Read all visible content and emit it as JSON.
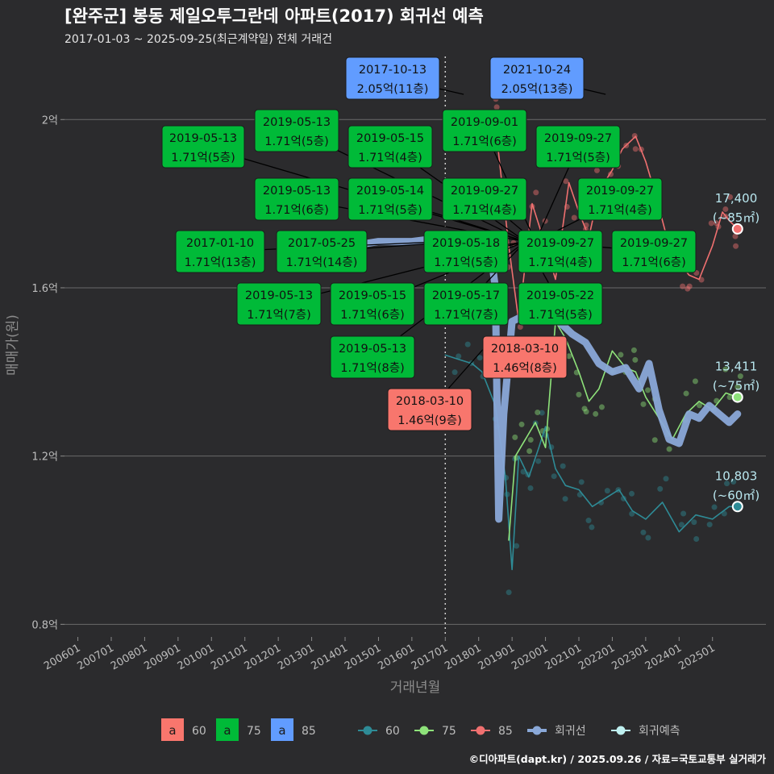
{
  "header": {
    "title": "[완주군] 봉동 제일오투그란데 아파트(2017) 회귀선 예측",
    "subtitle": "2017-01-03 ~ 2025-09-25(최근계약일) 전체 거래건"
  },
  "caption": "©디아파트(dapt.kr) / 2025.09.26 / 자료=국토교통부 실거래가",
  "colors": {
    "background": "#2b2b2d",
    "area60": "#2e8b96",
    "area75": "#8ee27a",
    "area85": "#f07070",
    "regression": "#8aa8d8",
    "predict": "#bff0f0",
    "label60": "#f8766d",
    "label75": "#00ba38",
    "label85": "#619cff"
  },
  "chart_data": {
    "type": "line",
    "xlabel": "거래년월",
    "ylabel": "매매가(원)",
    "x_ticks": [
      "200601",
      "200701",
      "200801",
      "200901",
      "201001",
      "201101",
      "201201",
      "201301",
      "201401",
      "201501",
      "201601",
      "201701",
      "201801",
      "201901",
      "202001",
      "202101",
      "202201",
      "202301",
      "202401",
      "202501"
    ],
    "y_ticks": [
      {
        "value": 0.8,
        "label": "0.8억"
      },
      {
        "value": 1.2,
        "label": "1.2억"
      },
      {
        "value": 1.6,
        "label": "1.6억"
      },
      {
        "value": 2.0,
        "label": "2억"
      }
    ],
    "xlim": [
      2005.6,
      2026.6
    ],
    "ylim": [
      0.77,
      2.15
    ],
    "ref_line_x": 2017.0,
    "legend": {
      "label_keys": [
        {
          "glyph": "a",
          "name": "60",
          "color": "#f8766d"
        },
        {
          "glyph": "a",
          "name": "75",
          "color": "#00ba38"
        },
        {
          "glyph": "a",
          "name": "85",
          "color": "#619cff"
        }
      ],
      "line_keys": [
        {
          "name": "60",
          "color": "#2e8b96"
        },
        {
          "name": "75",
          "color": "#8ee27a"
        },
        {
          "name": "85",
          "color": "#f07070"
        },
        {
          "name": "회귀선",
          "color": "#8aa8d8"
        },
        {
          "name": "회귀예측",
          "color": "#bff0f0"
        }
      ]
    },
    "series": [
      {
        "name": "60",
        "color": "#2e8b96",
        "x": [
          2017.0,
          2017.4,
          2017.8,
          2018.1,
          2018.5,
          2018.8,
          2019.0,
          2019.2,
          2019.5,
          2019.8,
          2020.0,
          2020.3,
          2020.6,
          2021.0,
          2021.4,
          2021.8,
          2022.2,
          2022.6,
          2023.0,
          2023.5,
          2024.0,
          2024.5,
          2025.0,
          2025.5,
          2025.75
        ],
        "y": [
          1.44,
          1.43,
          1.42,
          1.4,
          1.32,
          1.15,
          0.93,
          1.2,
          1.15,
          1.22,
          1.27,
          1.17,
          1.13,
          1.12,
          1.08,
          1.1,
          1.12,
          1.07,
          1.05,
          1.09,
          1.02,
          1.06,
          1.05,
          1.08,
          1.08
        ]
      },
      {
        "name": "75",
        "color": "#8ee27a",
        "x": [
          2018.9,
          2019.1,
          2019.4,
          2019.7,
          2020.0,
          2020.3,
          2020.6,
          2021.0,
          2021.3,
          2021.6,
          2022.0,
          2022.4,
          2022.7,
          2023.0,
          2023.4,
          2023.8,
          2024.2,
          2024.6,
          2025.0,
          2025.4,
          2025.75
        ],
        "y": [
          1.0,
          1.2,
          1.24,
          1.28,
          1.22,
          1.52,
          1.48,
          1.4,
          1.33,
          1.36,
          1.45,
          1.41,
          1.4,
          1.34,
          1.29,
          1.24,
          1.3,
          1.33,
          1.31,
          1.35,
          1.34
        ]
      },
      {
        "name": "85",
        "color": "#f07070",
        "x": [
          2018.1,
          2018.5,
          2018.9,
          2019.2,
          2019.6,
          2020.0,
          2020.3,
          2020.7,
          2021.0,
          2021.3,
          2021.6,
          2022.0,
          2022.3,
          2022.7,
          2023.0,
          2023.3,
          2023.7,
          2024.0,
          2024.3,
          2024.6,
          2025.0,
          2025.3,
          2025.5,
          2025.75
        ],
        "y": [
          2.02,
          1.99,
          1.7,
          1.52,
          1.8,
          1.7,
          1.62,
          1.85,
          1.78,
          1.72,
          1.83,
          1.88,
          1.93,
          1.96,
          1.9,
          1.82,
          1.7,
          1.66,
          1.63,
          1.62,
          1.7,
          1.78,
          1.76,
          1.74
        ]
      },
      {
        "name": "회귀선",
        "color": "#8aa8d8",
        "x": [
          2014.2,
          2015.0,
          2016.0,
          2017.0,
          2017.8,
          2018.3,
          2018.5,
          2018.6,
          2018.75,
          2019.0,
          2019.5,
          2020.0,
          2020.4,
          2020.8,
          2021.2,
          2021.6,
          2022.0,
          2022.4,
          2022.8,
          2023.1,
          2023.4,
          2023.7,
          2024.0,
          2024.3,
          2024.6,
          2024.9,
          2025.2,
          2025.5,
          2025.75
        ],
        "y": [
          1.7,
          1.71,
          1.71,
          1.72,
          1.72,
          1.72,
          1.6,
          1.05,
          1.3,
          1.52,
          1.54,
          1.56,
          1.52,
          1.49,
          1.47,
          1.42,
          1.4,
          1.41,
          1.36,
          1.42,
          1.31,
          1.24,
          1.23,
          1.3,
          1.29,
          1.32,
          1.3,
          1.28,
          1.3
        ]
      }
    ],
    "end_labels": [
      {
        "value": "17,400",
        "area": "(~85㎡)",
        "y": 1.74,
        "color": "#f07070"
      },
      {
        "value": "13,411",
        "area": "(~75㎡)",
        "y": 1.34,
        "color": "#8ee27a"
      },
      {
        "value": "10,803",
        "area": "(~60㎡)",
        "y": 1.08,
        "color": "#2e8b96"
      }
    ],
    "annotations": [
      {
        "date": "2017-10-13",
        "price": "2.05억(11층)",
        "color": "#619cff",
        "tx": 2017.55,
        "ty": 2.06
      },
      {
        "date": "2021-10-24",
        "price": "2.05억(13층)",
        "color": "#619cff",
        "tx": 2021.8,
        "ty": 2.06
      },
      {
        "date": "2019-05-13",
        "price": "1.71억(5층)",
        "color": "#00ba38",
        "tx": 2019.4,
        "ty": 1.71
      },
      {
        "date": "2019-05-13",
        "price": "1.71억(5층)",
        "color": "#00ba38",
        "tx": 2019.4,
        "ty": 1.71
      },
      {
        "date": "2019-05-15",
        "price": "1.71억(4층)",
        "color": "#00ba38",
        "tx": 2019.4,
        "ty": 1.71
      },
      {
        "date": "2019-09-01",
        "price": "1.71억(6층)",
        "color": "#00ba38",
        "tx": 2019.7,
        "ty": 1.71
      },
      {
        "date": "2019-09-27",
        "price": "1.71억(5층)",
        "color": "#00ba38",
        "tx": 2019.7,
        "ty": 1.71
      },
      {
        "date": "2019-05-13",
        "price": "1.71억(6층)",
        "color": "#00ba38",
        "tx": 2019.4,
        "ty": 1.71
      },
      {
        "date": "2019-05-14",
        "price": "1.71억(5층)",
        "color": "#00ba38",
        "tx": 2019.4,
        "ty": 1.71
      },
      {
        "date": "2019-09-27",
        "price": "1.71억(4층)",
        "color": "#00ba38",
        "tx": 2019.7,
        "ty": 1.71
      },
      {
        "date": "2019-09-27",
        "price": "1.71억(4층)",
        "color": "#00ba38",
        "tx": 2019.7,
        "ty": 1.71
      },
      {
        "date": "2017-01-10",
        "price": "1.71억(13층)",
        "color": "#00ba38",
        "tx": 2017.0,
        "ty": 1.71
      },
      {
        "date": "2017-05-25",
        "price": "1.71억(14층)",
        "color": "#00ba38",
        "tx": 2017.4,
        "ty": 1.71
      },
      {
        "date": "2019-05-18",
        "price": "1.71억(5층)",
        "color": "#00ba38",
        "tx": 2019.4,
        "ty": 1.71
      },
      {
        "date": "2019-09-27",
        "price": "1.71억(4층)",
        "color": "#00ba38",
        "tx": 2019.7,
        "ty": 1.71
      },
      {
        "date": "2019-09-27",
        "price": "1.71억(6층)",
        "color": "#00ba38",
        "tx": 2019.7,
        "ty": 1.71
      },
      {
        "date": "2019-05-13",
        "price": "1.71억(7층)",
        "color": "#00ba38",
        "tx": 2019.4,
        "ty": 1.71
      },
      {
        "date": "2019-05-15",
        "price": "1.71억(6층)",
        "color": "#00ba38",
        "tx": 2019.4,
        "ty": 1.71
      },
      {
        "date": "2019-05-17",
        "price": "1.71억(7층)",
        "color": "#00ba38",
        "tx": 2019.4,
        "ty": 1.71
      },
      {
        "date": "2019-05-22",
        "price": "1.71억(5층)",
        "color": "#00ba38",
        "tx": 2019.4,
        "ty": 1.71
      },
      {
        "date": "2018-03-10",
        "price": "1.46억(8층)",
        "color": "#f8766d",
        "tx": 2018.2,
        "ty": 1.46
      },
      {
        "date": "2019-05-13",
        "price": "1.71억(8층)",
        "color": "#00ba38",
        "tx": 2019.4,
        "ty": 1.71
      },
      {
        "date": "2018-03-10",
        "price": "1.46억(9층)",
        "color": "#f8766d",
        "tx": 2018.2,
        "ty": 1.46
      }
    ]
  }
}
